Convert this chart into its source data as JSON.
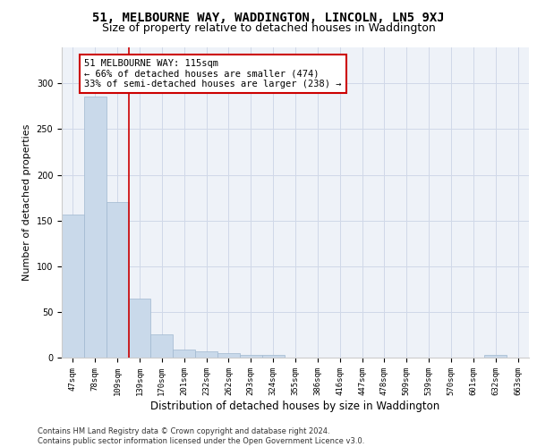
{
  "title_line1": "51, MELBOURNE WAY, WADDINGTON, LINCOLN, LN5 9XJ",
  "title_line2": "Size of property relative to detached houses in Waddington",
  "xlabel": "Distribution of detached houses by size in Waddington",
  "ylabel": "Number of detached properties",
  "categories": [
    "47sqm",
    "78sqm",
    "109sqm",
    "139sqm",
    "170sqm",
    "201sqm",
    "232sqm",
    "262sqm",
    "293sqm",
    "324sqm",
    "355sqm",
    "386sqm",
    "416sqm",
    "447sqm",
    "478sqm",
    "509sqm",
    "539sqm",
    "570sqm",
    "601sqm",
    "632sqm",
    "663sqm"
  ],
  "values": [
    157,
    286,
    170,
    65,
    25,
    9,
    7,
    5,
    3,
    3,
    0,
    0,
    0,
    0,
    0,
    0,
    0,
    0,
    0,
    3,
    0
  ],
  "bar_color": "#c9d9ea",
  "bar_edge_color": "#a0b8d0",
  "grid_color": "#d0d8e8",
  "background_color": "#eef2f8",
  "annotation_text": "51 MELBOURNE WAY: 115sqm\n← 66% of detached houses are smaller (474)\n33% of semi-detached houses are larger (238) →",
  "annotation_box_edge": "#cc0000",
  "vline_x": 2.5,
  "vline_color": "#cc0000",
  "ylim": [
    0,
    340
  ],
  "yticks": [
    0,
    50,
    100,
    150,
    200,
    250,
    300,
    350
  ],
  "footer_text": "Contains HM Land Registry data © Crown copyright and database right 2024.\nContains public sector information licensed under the Open Government Licence v3.0.",
  "title_fontsize": 10,
  "subtitle_fontsize": 9,
  "xlabel_fontsize": 8.5,
  "ylabel_fontsize": 8,
  "annotation_fontsize": 7.5,
  "tick_fontsize": 6.5,
  "footer_fontsize": 6
}
